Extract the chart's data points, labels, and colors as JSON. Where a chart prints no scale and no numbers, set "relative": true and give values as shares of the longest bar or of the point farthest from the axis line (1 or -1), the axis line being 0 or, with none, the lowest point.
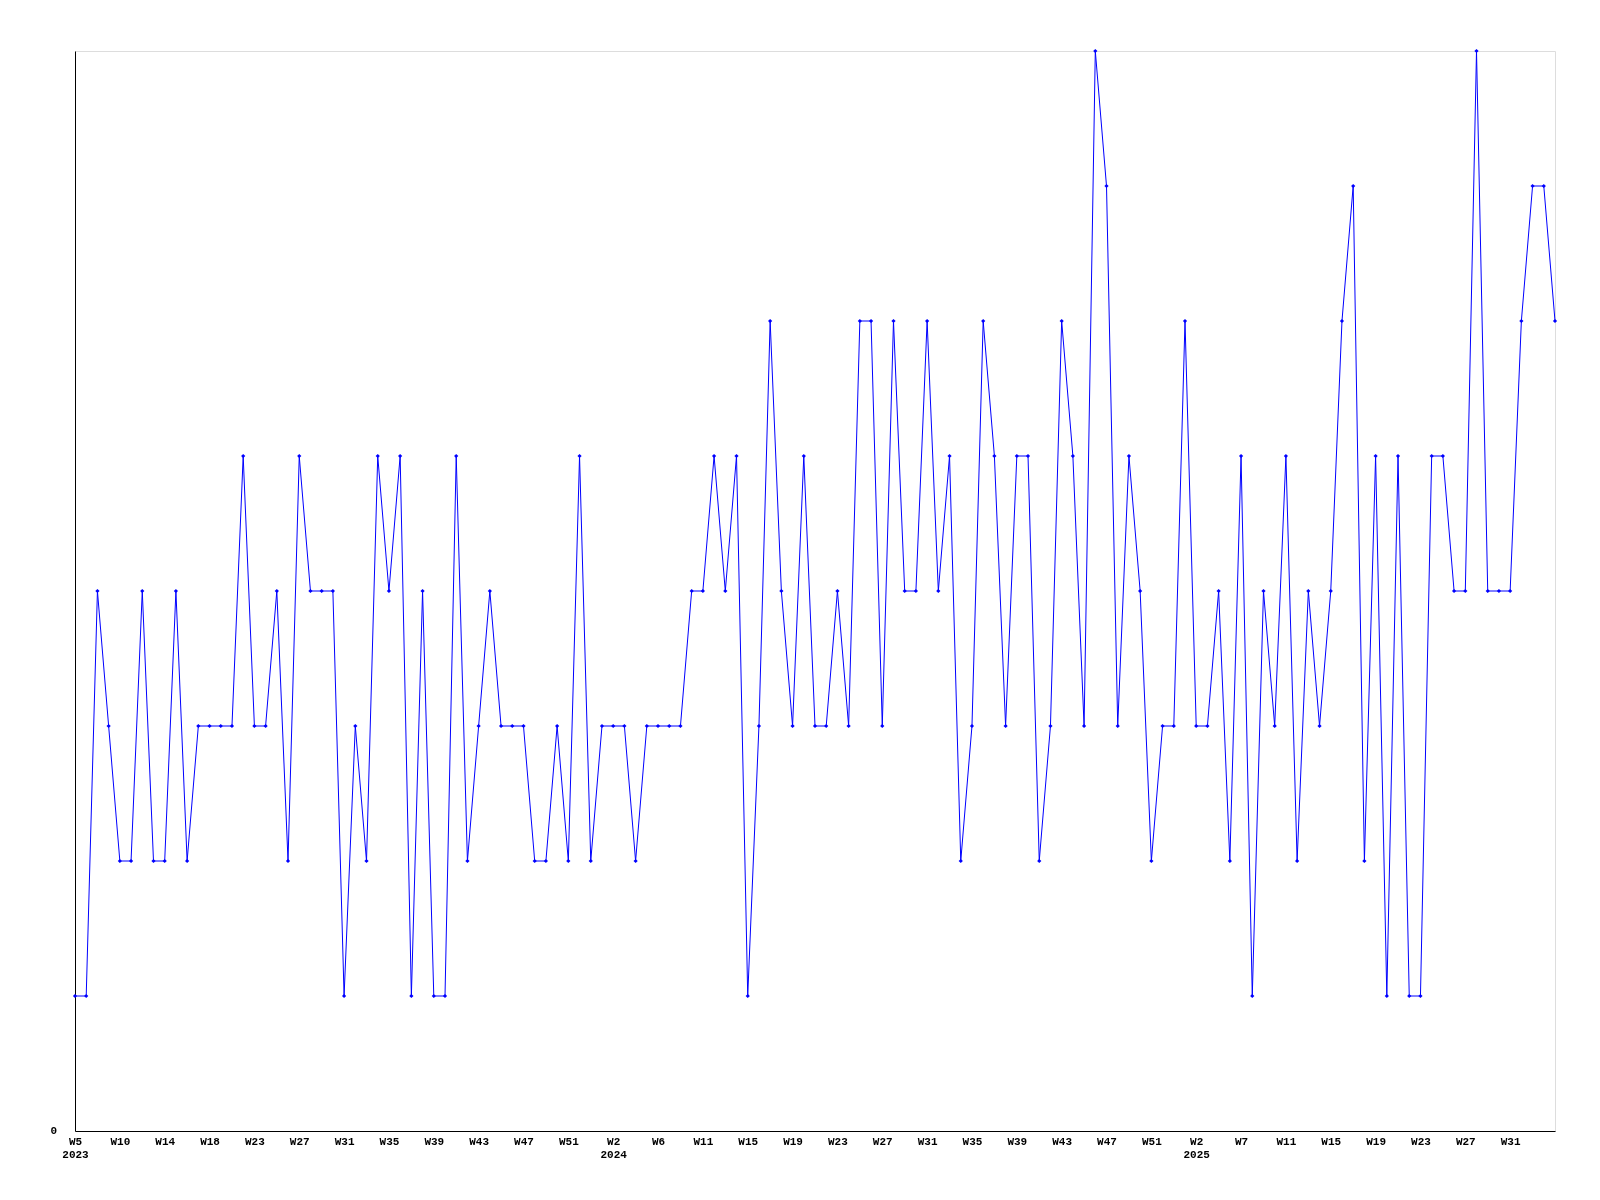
{
  "chart_data": {
    "type": "line",
    "relative": true,
    "marker": "diamond",
    "line_style": "solid",
    "grid": false,
    "categories": [
      "W5\n2023",
      null,
      null,
      null,
      "W10",
      null,
      null,
      null,
      "W14",
      null,
      null,
      null,
      "W18",
      null,
      null,
      null,
      "W23",
      null,
      null,
      null,
      "W27",
      null,
      null,
      null,
      "W31",
      null,
      null,
      null,
      "W35",
      null,
      null,
      null,
      "W39",
      null,
      null,
      null,
      "W43",
      null,
      null,
      null,
      "W47",
      null,
      null,
      null,
      "W51",
      null,
      null,
      null,
      "W2\n2024",
      null,
      null,
      null,
      "W6",
      null,
      null,
      null,
      "W11",
      null,
      null,
      null,
      "W15",
      null,
      null,
      null,
      "W19",
      null,
      null,
      null,
      "W23",
      null,
      null,
      null,
      "W27",
      null,
      null,
      null,
      "W31",
      null,
      null,
      null,
      "W35",
      null,
      null,
      null,
      "W39",
      null,
      null,
      null,
      "W43",
      null,
      null,
      null,
      "W47",
      null,
      null,
      null,
      "W51",
      null,
      null,
      null,
      "W2\n2025",
      null,
      null,
      null,
      "W7",
      null,
      null,
      null,
      "W11",
      null,
      null,
      null,
      "W15",
      null,
      null,
      null,
      "W19",
      null,
      null,
      null,
      "W23",
      null,
      null,
      null,
      "W27",
      null,
      null,
      null,
      "W31",
      null,
      null,
      null,
      null
    ],
    "series": [
      {
        "color": "#0000ff",
        "values": [
          0.125,
          0.125,
          0.5,
          0.375,
          0.25,
          0.25,
          0.5,
          0.25,
          0.25,
          0.5,
          0.25,
          0.375,
          0.375,
          0.375,
          0.375,
          0.625,
          0.375,
          0.375,
          0.5,
          0.25,
          0.625,
          0.5,
          0.5,
          0.5,
          0.125,
          0.375,
          0.25,
          0.625,
          0.5,
          0.625,
          0.125,
          0.5,
          0.125,
          0.125,
          0.625,
          0.25,
          0.375,
          0.5,
          0.375,
          0.375,
          0.375,
          0.25,
          0.25,
          0.375,
          0.25,
          0.625,
          0.25,
          0.375,
          0.375,
          0.375,
          0.25,
          0.375,
          0.375,
          0.375,
          0.375,
          0.5,
          0.5,
          0.625,
          0.5,
          0.625,
          0.125,
          0.375,
          0.75,
          0.5,
          0.375,
          0.625,
          0.375,
          0.375,
          0.5,
          0.375,
          0.75,
          0.75,
          0.375,
          0.75,
          0.5,
          0.5,
          0.75,
          0.5,
          0.625,
          0.25,
          0.375,
          0.75,
          0.625,
          0.375,
          0.625,
          0.625,
          0.25,
          0.375,
          0.75,
          0.625,
          0.375,
          1,
          0.875,
          0.375,
          0.625,
          0.5,
          0.25,
          0.375,
          0.375,
          0.75,
          0.375,
          0.375,
          0.5,
          0.25,
          0.625,
          0.125,
          0.5,
          0.375,
          0.625,
          0.25,
          0.5,
          0.375,
          0.5,
          0.75,
          0.875,
          0.25,
          0.625,
          0.125,
          0.625,
          0.125,
          0.125,
          0.625,
          0.625,
          0.5,
          0.5,
          1,
          0.5,
          0.5,
          0.5,
          0.75,
          0.875,
          0.875,
          0.75
        ]
      }
    ],
    "annotations": [
      "0"
    ]
  }
}
